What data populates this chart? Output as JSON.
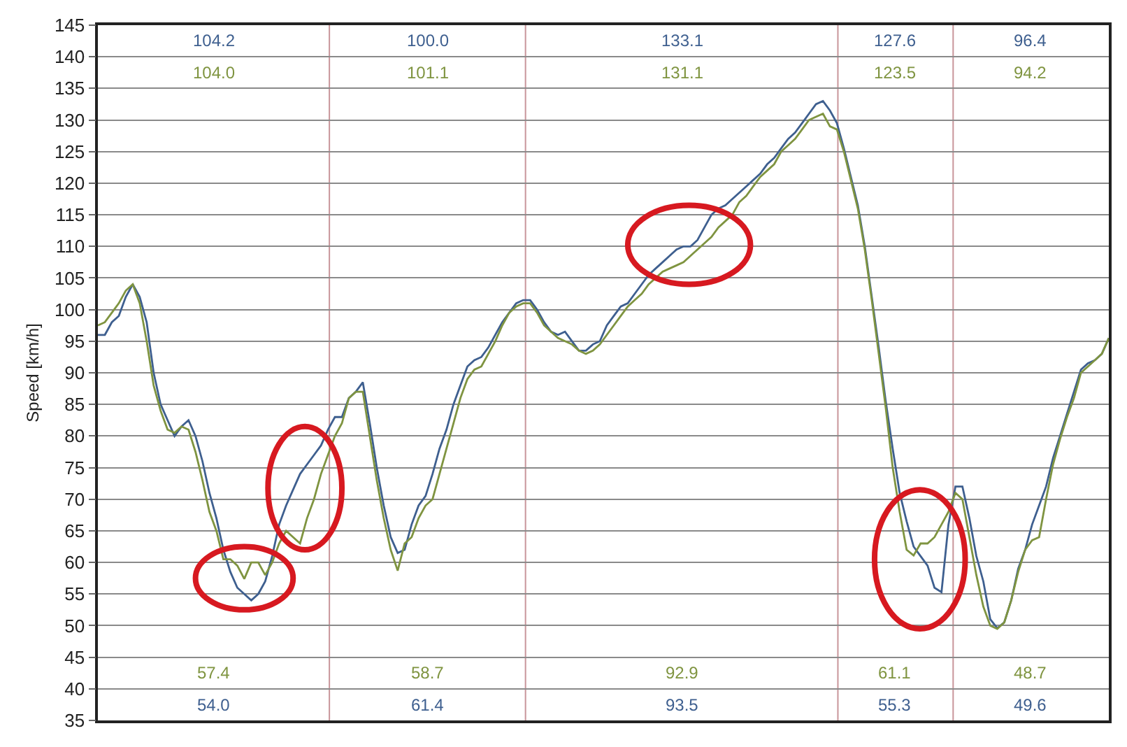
{
  "chart_data": {
    "type": "line",
    "ylabel": "Speed [km/h]",
    "categories": [
      null,
      null,
      null,
      null,
      null,
      null,
      null,
      null,
      null,
      null,
      null,
      null,
      null,
      null,
      null,
      null,
      null,
      null,
      null,
      null,
      null,
      null,
      null,
      null,
      null,
      null,
      null,
      null,
      null,
      null,
      null,
      null,
      null,
      null,
      null,
      null,
      null,
      null,
      null,
      null,
      null,
      null,
      null,
      null,
      null,
      null,
      null,
      null,
      null,
      null,
      null,
      null,
      null,
      null,
      null,
      null,
      null,
      null,
      null,
      null,
      null,
      null,
      null,
      null,
      null,
      null,
      null,
      null,
      null,
      null,
      null,
      null,
      null,
      null,
      null,
      null,
      null,
      null,
      null,
      null,
      null,
      null,
      null,
      null,
      null,
      null,
      null,
      null,
      null,
      null,
      null,
      null,
      null,
      null,
      null,
      null,
      null,
      null,
      null,
      null,
      null,
      null,
      null,
      null,
      null,
      null,
      null,
      null,
      null,
      null,
      null,
      null,
      null,
      null,
      null,
      null,
      null,
      null,
      null,
      null,
      null,
      null,
      null,
      null,
      null,
      null,
      null,
      null,
      null,
      null,
      null,
      null,
      null,
      null,
      null,
      null,
      null,
      null,
      null,
      null,
      null,
      null,
      null,
      null,
      null,
      null
    ],
    "series": [
      {
        "color": "#3e5f8f",
        "values": [
          96,
          96,
          98,
          99,
          102,
          104,
          102,
          98,
          90,
          85,
          82.5,
          80,
          81.5,
          82.5,
          80,
          76,
          71,
          67,
          62,
          58.5,
          56,
          55,
          54,
          55,
          57,
          61,
          66,
          69,
          71.5,
          74,
          75.5,
          77,
          78.5,
          81,
          83,
          83,
          86,
          87,
          88.5,
          82,
          75,
          69,
          64,
          61.5,
          62,
          66,
          69,
          70.5,
          74,
          78,
          81,
          85,
          88,
          91,
          92,
          92.5,
          94,
          96,
          98,
          99.5,
          101,
          101.5,
          101.5,
          100,
          98,
          96.5,
          96,
          96.5,
          95,
          93.5,
          93.5,
          94.5,
          95,
          97.5,
          99,
          100.5,
          101,
          102.5,
          104,
          105.5,
          106.5,
          107.5,
          108.5,
          109.5,
          110,
          110,
          111,
          113,
          115,
          116,
          116.5,
          117.5,
          118.5,
          119.5,
          120.5,
          121.5,
          123,
          124,
          125.5,
          127,
          128,
          129.5,
          131,
          132.5,
          133,
          131.5,
          129.5,
          125.5,
          121,
          116.5,
          110,
          102,
          94,
          85.5,
          78,
          71,
          66.5,
          62.5,
          61,
          59.5,
          56,
          55.3,
          66,
          72,
          72,
          67,
          61,
          57,
          51,
          49.6,
          50.5,
          54,
          59,
          62,
          66,
          69,
          72,
          76.5,
          80,
          83.5,
          87,
          90.5,
          91.5,
          92,
          93,
          95.5
        ]
      },
      {
        "color": "#7f9440",
        "values": [
          97.5,
          98,
          99.5,
          101,
          103,
          104,
          101,
          95,
          88,
          84,
          81,
          80.5,
          81.5,
          81,
          77.5,
          73,
          68,
          65,
          60.5,
          60.5,
          59.5,
          57.4,
          60,
          60,
          58,
          60,
          63,
          65,
          64,
          63,
          67,
          70,
          74,
          77,
          80,
          82,
          86,
          87,
          87,
          80,
          73,
          67,
          62,
          58.7,
          63,
          64,
          67,
          69,
          70,
          74,
          78,
          82,
          86,
          89,
          90.5,
          91,
          93,
          95,
          97.5,
          99.5,
          100.5,
          101,
          101,
          99.5,
          97.5,
          96.5,
          95.5,
          95,
          94.5,
          93.5,
          93,
          93.5,
          94.5,
          96,
          97.5,
          99,
          100.5,
          101.5,
          102.5,
          104,
          105,
          106,
          106.5,
          107,
          107.5,
          108.5,
          109.5,
          110.5,
          111.5,
          113,
          114,
          115,
          117,
          118,
          119.5,
          121,
          122,
          123,
          125,
          126,
          127,
          128.5,
          130,
          130.5,
          131,
          129,
          128.5,
          125,
          120.5,
          116,
          109.5,
          101.5,
          93,
          84.5,
          75,
          68,
          62,
          61.1,
          63,
          63,
          64,
          66,
          68,
          71,
          70,
          64,
          58,
          53,
          50,
          49.5,
          50.5,
          54,
          58.5,
          62,
          63.5,
          64,
          70,
          75.5,
          79.5,
          83,
          86,
          90,
          91,
          92,
          93,
          95.5
        ]
      }
    ],
    "ylim": [
      35,
      145
    ],
    "yticks": [
      35,
      40,
      45,
      50,
      55,
      60,
      65,
      70,
      75,
      80,
      85,
      90,
      95,
      100,
      105,
      110,
      115,
      120,
      125,
      130,
      135,
      140,
      145
    ],
    "grid": "y",
    "tick_labels": "y",
    "annotations": [
      "104.2",
      "104.0",
      "57.4",
      "54.0",
      "100.0",
      "101.1",
      "58.7",
      "61.4",
      "133.1",
      "131.1",
      "92.9",
      "93.5",
      "127.6",
      "123.5",
      "61.1",
      "55.3",
      "96.4",
      "94.2",
      "48.7",
      "49.6"
    ]
  }
}
